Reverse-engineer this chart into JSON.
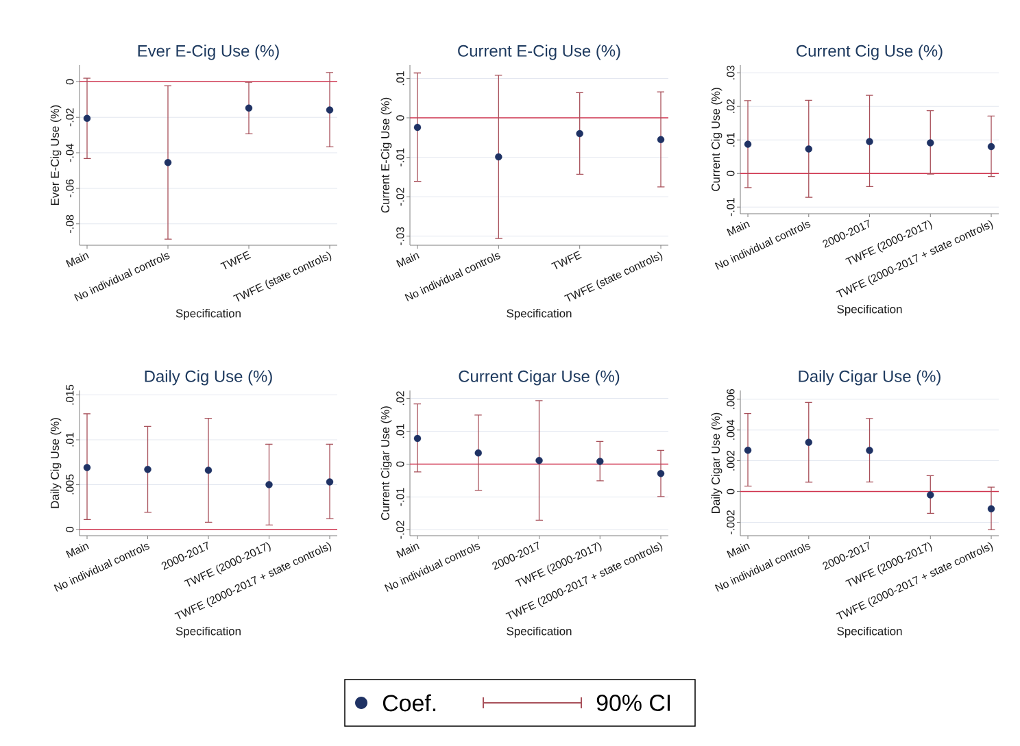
{
  "chart_data": [
    {
      "type": "scatter",
      "title": "Ever E-Cig Use (%)",
      "xlabel": "Specification",
      "ylabel": "Ever E-Cig Use (%)",
      "categories": [
        "Main",
        "No individual controls",
        "TWFE",
        "TWFE (state controls)"
      ],
      "series": [
        {
          "name": "Coef.",
          "color": "#1f3264",
          "values": [
            -0.0206,
            -0.0455,
            -0.0148,
            -0.0159
          ],
          "errors": [
            [
              -0.0432,
              0.002
            ],
            [
              -0.0886,
              -0.0022
            ],
            [
              -0.0293,
              -0.0003
            ],
            [
              -0.0366,
              0.0052
            ]
          ]
        }
      ],
      "ylim": [
        -0.092,
        0.0094
      ],
      "yticks": [
        {
          "value": -0.08,
          "label": "-.08"
        },
        {
          "value": -0.06,
          "label": "-.06"
        },
        {
          "value": -0.04,
          "label": "-.04"
        },
        {
          "value": -0.02,
          "label": "-.02"
        },
        0
      ],
      "ref_lines": [
        {
          "axis": "y",
          "value": 0,
          "color": "#d0354f"
        }
      ],
      "grid": "y",
      "marker": "circle",
      "legend": "bottom",
      "annotations": [
        "90% CI"
      ]
    },
    {
      "type": "scatter",
      "title": "Current E-Cig Use (%)",
      "xlabel": "Specification",
      "ylabel": "Current E-Cig Use (%)",
      "categories": [
        "Main",
        "No individual controls",
        "TWFE",
        "TWFE (state controls)"
      ],
      "series": [
        {
          "color": "#1f3264",
          "values": [
            -0.0024,
            -0.0099,
            -0.004,
            -0.0055
          ],
          "errors": [
            [
              -0.0161,
              0.0114
            ],
            [
              -0.0306,
              0.0108
            ],
            [
              -0.0143,
              0.0064
            ],
            [
              -0.0175,
              0.0066
            ]
          ]
        }
      ],
      "ylim": [
        -0.0323,
        0.0134
      ],
      "yticks": [
        {
          "value": -0.03,
          "label": "-.03"
        },
        {
          "value": -0.02,
          "label": "-.02"
        },
        {
          "value": -0.01,
          "label": "-.01"
        },
        0,
        {
          "value": 0.01,
          "label": ".01"
        }
      ],
      "ref_lines": [
        {
          "axis": "y",
          "value": 0,
          "color": "#d0354f"
        }
      ],
      "grid": "y",
      "marker": "circle"
    },
    {
      "type": "scatter",
      "title": "Current Cig Use (%)",
      "xlabel": "Specification",
      "ylabel": "Current Cig Use (%)",
      "categories": [
        "Main",
        "No individual controls",
        "2000-2017",
        "TWFE (2000-2017)",
        "TWFE (2000-2017 + state controls)"
      ],
      "series": [
        {
          "color": "#1f3264",
          "values": [
            0.0087,
            0.0073,
            0.0095,
            0.0091,
            0.008
          ],
          "errors": [
            [
              -0.0042,
              0.0217
            ],
            [
              -0.0071,
              0.0218
            ],
            [
              -0.0039,
              0.0233
            ],
            [
              -0.0002,
              0.0187
            ],
            [
              -0.0009,
              0.0171
            ]
          ]
        }
      ],
      "ylim": [
        -0.012,
        0.0323
      ],
      "yticks": [
        {
          "value": -0.01,
          "label": "-.01"
        },
        0,
        {
          "value": 0.01,
          "label": ".01"
        },
        {
          "value": 0.02,
          "label": ".02"
        },
        {
          "value": 0.03,
          "label": ".03"
        }
      ],
      "ref_lines": [
        {
          "axis": "y",
          "value": 0,
          "color": "#d0354f"
        }
      ],
      "grid": "y",
      "marker": "circle"
    },
    {
      "type": "scatter",
      "title": "Daily Cig Use (%)",
      "xlabel": "Specification",
      "ylabel": "Daily Cig Use (%)",
      "categories": [
        "Main",
        "No individual controls",
        "2000-2017",
        "TWFE (2000-2017)",
        "TWFE (2000-2017 + state controls)"
      ],
      "series": [
        {
          "color": "#1f3264",
          "values": [
            0.0069,
            0.0067,
            0.0066,
            0.005,
            0.0053
          ],
          "errors": [
            [
              0.0011,
              0.0129
            ],
            [
              0.0019,
              0.0115
            ],
            [
              0.0008,
              0.0124
            ],
            [
              0.0005,
              0.0095
            ],
            [
              0.0012,
              0.0095
            ]
          ]
        }
      ],
      "ylim": [
        -0.0007,
        0.0155
      ],
      "yticks": [
        0,
        {
          "value": 0.005,
          "label": ".005"
        },
        {
          "value": 0.01,
          "label": ".01"
        },
        {
          "value": 0.015,
          "label": ".015"
        }
      ],
      "ref_lines": [
        {
          "axis": "y",
          "value": 0,
          "color": "#d0354f"
        }
      ],
      "grid": "y",
      "marker": "circle"
    },
    {
      "type": "scatter",
      "title": "Current Cigar Use (%)",
      "xlabel": "Specification",
      "ylabel": "Current Cigar Use (%)",
      "categories": [
        "Main",
        "No individual controls",
        "2000-2017",
        "TWFE (2000-2017)",
        "TWFE (2000-2017 + state controls)"
      ],
      "series": [
        {
          "color": "#1f3264",
          "values": [
            0.0078,
            0.0034,
            0.0011,
            0.0008,
            -0.0029
          ],
          "errors": [
            [
              -0.0024,
              0.0183
            ],
            [
              -0.008,
              0.0149
            ],
            [
              -0.0171,
              0.0193
            ],
            [
              -0.0051,
              0.0069
            ],
            [
              -0.0099,
              0.0042
            ]
          ]
        }
      ],
      "ylim": [
        -0.0218,
        0.0224
      ],
      "yticks": [
        {
          "value": -0.02,
          "label": "-.02"
        },
        {
          "value": -0.01,
          "label": "-.01"
        },
        0,
        {
          "value": 0.01,
          "label": ".01"
        },
        {
          "value": 0.02,
          "label": ".02"
        }
      ],
      "ref_lines": [
        {
          "axis": "y",
          "value": 0,
          "color": "#d0354f"
        }
      ],
      "grid": "y",
      "marker": "circle"
    },
    {
      "type": "scatter",
      "title": "Daily Cigar Use (%)",
      "xlabel": "Specification",
      "ylabel": "Daily Cigar Use (%)",
      "categories": [
        "Main",
        "No individual controls",
        "2000-2017",
        "TWFE (2000-2017)",
        "TWFE (2000-2017 + state controls)"
      ],
      "series": [
        {
          "color": "#1f3264",
          "values": [
            0.00268,
            0.0032,
            0.00267,
            -0.00022,
            -0.00112
          ],
          "errors": [
            [
              0.00035,
              0.00507
            ],
            [
              0.00061,
              0.0058
            ],
            [
              0.00062,
              0.00475
            ],
            [
              -0.00142,
              0.00103
            ],
            [
              -0.00249,
              0.00029
            ]
          ]
        }
      ],
      "ylim": [
        -0.00287,
        0.00657
      ],
      "yticks": [
        {
          "value": -0.002,
          "label": "-.002"
        },
        0,
        {
          "value": 0.002,
          "label": ".002"
        },
        {
          "value": 0.004,
          "label": ".004"
        },
        {
          "value": 0.006,
          "label": ".006"
        }
      ],
      "ref_lines": [
        {
          "axis": "y",
          "value": 0,
          "color": "#d0354f"
        }
      ],
      "grid": "y",
      "marker": "circle"
    }
  ]
}
